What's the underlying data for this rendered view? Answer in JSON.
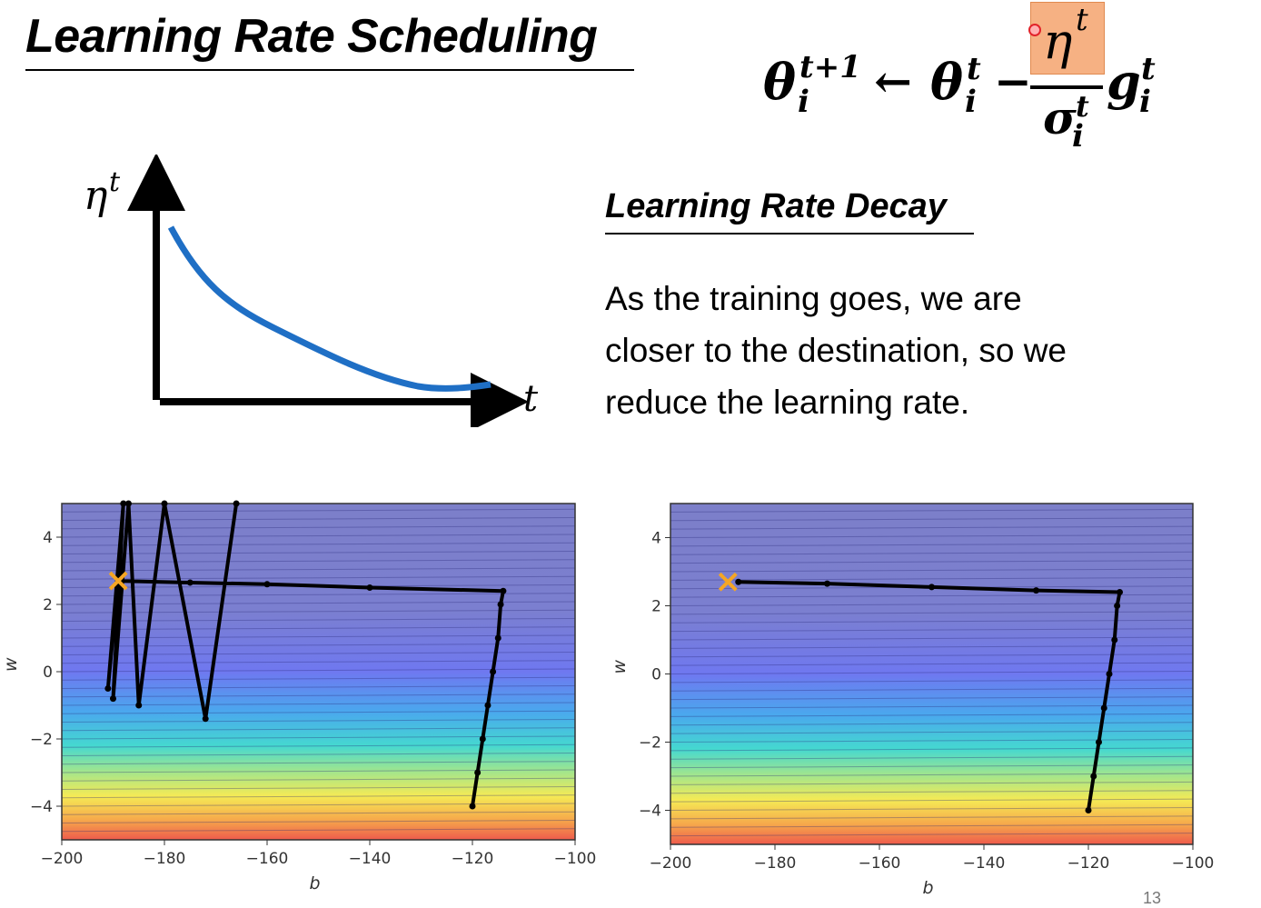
{
  "slide": {
    "title": "Learning Rate Scheduling",
    "subtitle": "Learning Rate Decay",
    "body_lines": [
      "As the training goes, we are",
      "closer to the destination, so we",
      "reduce the learning rate."
    ],
    "page_number": "13"
  },
  "formula": {
    "lhs_base": "θ",
    "lhs_sup": "t+1",
    "lhs_sub": "i",
    "arrow": "←",
    "theta": "θ",
    "theta_sup": "t",
    "theta_sub": "i",
    "minus": "−",
    "numerator": "η",
    "numerator_sup": "t",
    "denominator": "σ",
    "denom_sup": "t",
    "denom_sub": "i",
    "grad": "g",
    "grad_sup": "t",
    "grad_sub": "i",
    "highlight_color": "#f6b183"
  },
  "lr_curve": {
    "y_label": "η",
    "y_label_sup": "t",
    "x_label": "t",
    "curve_color": "#1f6fc5"
  },
  "chart_data": [
    {
      "type": "contour",
      "title": "",
      "xlabel": "b",
      "ylabel": "w",
      "xlim": [
        -200,
        -100
      ],
      "ylim": [
        -5,
        5
      ],
      "xticks": [
        -200,
        -180,
        -160,
        -140,
        -120,
        -100
      ],
      "yticks": [
        -4,
        -2,
        0,
        2,
        4
      ],
      "xtick_labels": [
        "−200",
        "−180",
        "−160",
        "−140",
        "−120",
        "−100"
      ],
      "ytick_labels": [
        "−4",
        "−2",
        "0",
        "2",
        "4"
      ],
      "target": {
        "b": -189,
        "w": 2.7
      },
      "path": [
        [
          -120,
          -4
        ],
        [
          -119,
          -3
        ],
        [
          -118,
          -2
        ],
        [
          -117,
          -1
        ],
        [
          -116,
          0
        ],
        [
          -115,
          1
        ],
        [
          -114.5,
          2
        ],
        [
          -114,
          2.4
        ],
        [
          -140,
          2.5
        ],
        [
          -160,
          2.6
        ],
        [
          -175,
          2.65
        ],
        [
          -189,
          2.7
        ],
        [
          -191,
          -0.5
        ],
        [
          -188,
          5
        ],
        [
          -190,
          -0.8
        ],
        [
          -187,
          5
        ],
        [
          -185,
          -1
        ],
        [
          -180,
          5
        ],
        [
          -172,
          -1.4
        ],
        [
          -166,
          5
        ]
      ]
    },
    {
      "type": "contour",
      "title": "",
      "xlabel": "b",
      "ylabel": "w",
      "xlim": [
        -200,
        -100
      ],
      "ylim": [
        -5,
        5
      ],
      "xticks": [
        -200,
        -180,
        -160,
        -140,
        -120,
        -100
      ],
      "yticks": [
        -4,
        -2,
        0,
        2,
        4
      ],
      "xtick_labels": [
        "−200",
        "−180",
        "−160",
        "−140",
        "−120",
        "−100"
      ],
      "ytick_labels": [
        "−4",
        "−2",
        "0",
        "2",
        "4"
      ],
      "target": {
        "b": -189,
        "w": 2.7
      },
      "path": [
        [
          -120,
          -4
        ],
        [
          -119,
          -3
        ],
        [
          -118,
          -2
        ],
        [
          -117,
          -1
        ],
        [
          -116,
          0
        ],
        [
          -115,
          1
        ],
        [
          -114.5,
          2
        ],
        [
          -114,
          2.4
        ],
        [
          -130,
          2.45
        ],
        [
          -150,
          2.55
        ],
        [
          -170,
          2.65
        ],
        [
          -187,
          2.7
        ]
      ]
    }
  ]
}
